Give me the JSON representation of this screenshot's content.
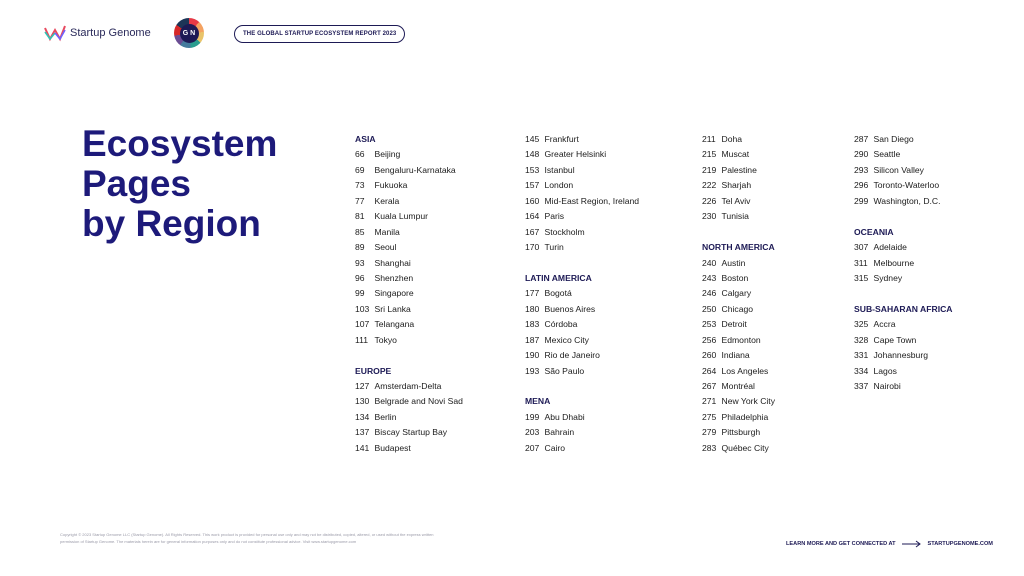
{
  "header": {
    "brand_name": "Startup Genome",
    "badge_text": "G N",
    "report_title": "THE GLOBAL STARTUP ECOSYSTEM REPORT 2023"
  },
  "title_lines": [
    "Ecosystem",
    "Pages",
    "by Region"
  ],
  "columns": [
    [
      {
        "type": "head",
        "text": "ASIA"
      },
      {
        "type": "entry",
        "num": "66",
        "name": "Beijing"
      },
      {
        "type": "entry",
        "num": "69",
        "name": "Bengaluru-Karnataka"
      },
      {
        "type": "entry",
        "num": "73",
        "name": "Fukuoka"
      },
      {
        "type": "entry",
        "num": "77",
        "name": "Kerala"
      },
      {
        "type": "entry",
        "num": "81",
        "name": "Kuala Lumpur"
      },
      {
        "type": "entry",
        "num": "85",
        "name": "Manila"
      },
      {
        "type": "entry",
        "num": "89",
        "name": "Seoul"
      },
      {
        "type": "entry",
        "num": "93",
        "name": "Shanghai"
      },
      {
        "type": "entry",
        "num": "96",
        "name": "Shenzhen"
      },
      {
        "type": "entry",
        "num": "99",
        "name": "Singapore"
      },
      {
        "type": "entry",
        "num": "103",
        "name": "Sri Lanka"
      },
      {
        "type": "entry",
        "num": "107",
        "name": "Telangana"
      },
      {
        "type": "entry",
        "num": "111",
        "name": "Tokyo"
      },
      {
        "type": "spacer"
      },
      {
        "type": "head",
        "text": "EUROPE"
      },
      {
        "type": "entry",
        "num": "127",
        "name": "Amsterdam-Delta"
      },
      {
        "type": "entry",
        "num": "130",
        "name": "Belgrade and Novi Sad"
      },
      {
        "type": "entry",
        "num": "134",
        "name": "Berlin"
      },
      {
        "type": "entry",
        "num": "137",
        "name": "Biscay Startup Bay"
      },
      {
        "type": "entry",
        "num": "141",
        "name": "Budapest"
      }
    ],
    [
      {
        "type": "entry",
        "num": "145",
        "name": "Frankfurt"
      },
      {
        "type": "entry",
        "num": "148",
        "name": "Greater Helsinki"
      },
      {
        "type": "entry",
        "num": "153",
        "name": "Istanbul"
      },
      {
        "type": "entry",
        "num": "157",
        "name": "London"
      },
      {
        "type": "entry",
        "num": "160",
        "name": "Mid-East Region, Ireland"
      },
      {
        "type": "entry",
        "num": "164",
        "name": "Paris"
      },
      {
        "type": "entry",
        "num": "167",
        "name": "Stockholm"
      },
      {
        "type": "entry",
        "num": "170",
        "name": "Turin"
      },
      {
        "type": "spacer"
      },
      {
        "type": "head",
        "text": "LATIN AMERICA"
      },
      {
        "type": "entry",
        "num": "177",
        "name": "Bogotá"
      },
      {
        "type": "entry",
        "num": "180",
        "name": "Buenos Aires"
      },
      {
        "type": "entry",
        "num": "183",
        "name": "Córdoba"
      },
      {
        "type": "entry",
        "num": "187",
        "name": "Mexico City"
      },
      {
        "type": "entry",
        "num": "190",
        "name": "Rio de Janeiro"
      },
      {
        "type": "entry",
        "num": "193",
        "name": "São Paulo"
      },
      {
        "type": "spacer"
      },
      {
        "type": "head",
        "text": "MENA"
      },
      {
        "type": "entry",
        "num": "199",
        "name": "Abu Dhabi"
      },
      {
        "type": "entry",
        "num": "203",
        "name": "Bahrain"
      },
      {
        "type": "entry",
        "num": "207",
        "name": "Cairo"
      }
    ],
    [
      {
        "type": "entry",
        "num": "211",
        "name": "Doha"
      },
      {
        "type": "entry",
        "num": "215",
        "name": "Muscat"
      },
      {
        "type": "entry",
        "num": "219",
        "name": "Palestine"
      },
      {
        "type": "entry",
        "num": "222",
        "name": "Sharjah"
      },
      {
        "type": "entry",
        "num": "226",
        "name": "Tel Aviv"
      },
      {
        "type": "entry",
        "num": "230",
        "name": "Tunisia"
      },
      {
        "type": "spacer"
      },
      {
        "type": "head",
        "text": "NORTH AMERICA"
      },
      {
        "type": "entry",
        "num": "240",
        "name": "Austin"
      },
      {
        "type": "entry",
        "num": "243",
        "name": "Boston"
      },
      {
        "type": "entry",
        "num": "246",
        "name": "Calgary"
      },
      {
        "type": "entry",
        "num": "250",
        "name": "Chicago"
      },
      {
        "type": "entry",
        "num": "253",
        "name": "Detroit"
      },
      {
        "type": "entry",
        "num": "256",
        "name": "Edmonton"
      },
      {
        "type": "entry",
        "num": "260",
        "name": "Indiana"
      },
      {
        "type": "entry",
        "num": "264",
        "name": "Los Angeles"
      },
      {
        "type": "entry",
        "num": "267",
        "name": "Montréal"
      },
      {
        "type": "entry",
        "num": "271",
        "name": "New York City"
      },
      {
        "type": "entry",
        "num": "275",
        "name": "Philadelphia"
      },
      {
        "type": "entry",
        "num": "279",
        "name": "Pittsburgh"
      },
      {
        "type": "entry",
        "num": "283",
        "name": "Québec City"
      }
    ],
    [
      {
        "type": "entry",
        "num": "287",
        "name": "San Diego"
      },
      {
        "type": "entry",
        "num": "290",
        "name": "Seattle"
      },
      {
        "type": "entry",
        "num": "293",
        "name": "Silicon Valley"
      },
      {
        "type": "entry",
        "num": "296",
        "name": "Toronto-Waterloo"
      },
      {
        "type": "entry",
        "num": "299",
        "name": "Washington, D.C."
      },
      {
        "type": "spacer"
      },
      {
        "type": "head",
        "text": "OCEANIA"
      },
      {
        "type": "entry",
        "num": "307",
        "name": "Adelaide"
      },
      {
        "type": "entry",
        "num": "311",
        "name": "Melbourne"
      },
      {
        "type": "entry",
        "num": "315",
        "name": "Sydney"
      },
      {
        "type": "spacer"
      },
      {
        "type": "head",
        "text": "SUB-SAHARAN AFRICA"
      },
      {
        "type": "entry",
        "num": "325",
        "name": "Accra"
      },
      {
        "type": "entry",
        "num": "328",
        "name": "Cape Town"
      },
      {
        "type": "entry",
        "num": "331",
        "name": "Johannesburg"
      },
      {
        "type": "entry",
        "num": "334",
        "name": "Lagos"
      },
      {
        "type": "entry",
        "num": "337",
        "name": "Nairobi"
      }
    ]
  ],
  "footer": {
    "legal_text": "Copyright © 2023 Startup Genome LLC (Startup Genome). All Rights Reserved. This work product is provided for personal use only and may not be distributed, copied, altered, or used without the express written permission of Startup Genome. The materials herein are for general information purposes only and do not constitute professional advice. Visit www.startupgenome.com",
    "cta_text": "LEARN MORE AND GET CONNECTED AT",
    "cta_link": "STARTUPGENOME.COM"
  },
  "colors": {
    "brand_navy": "#1d1a55",
    "title_blue": "#1d1a7a"
  },
  "icons": {
    "logo": "startup-genome-logo-icon",
    "cta_arrow": "arrow-right-icon"
  }
}
